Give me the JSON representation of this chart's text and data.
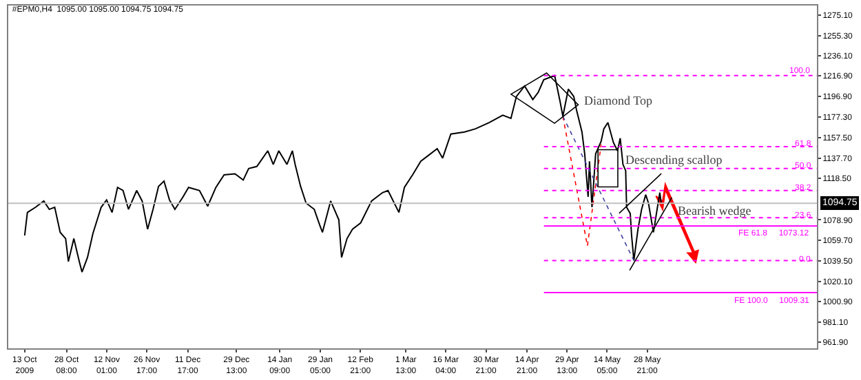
{
  "chart_data": {
    "type": "line",
    "title": "#EPM0,H4  1095.00 1095.00 1094.75 1094.75",
    "x": [
      "2009-10-13",
      "2009-10-14",
      "2009-10-17",
      "2009-10-20",
      "2009-10-22",
      "2009-10-24",
      "2009-10-26",
      "2009-10-28",
      "2009-10-29",
      "2009-10-31",
      "2009-11-02",
      "2009-11-03",
      "2009-11-05",
      "2009-11-07",
      "2009-11-10",
      "2009-11-12",
      "2009-11-14",
      "2009-11-16",
      "2009-11-18",
      "2009-11-20",
      "2009-11-23",
      "2009-11-25",
      "2009-11-27",
      "2009-11-29",
      "2009-12-01",
      "2009-12-03",
      "2009-12-05",
      "2009-12-07",
      "2009-12-10",
      "2009-12-12",
      "2009-12-16",
      "2009-12-19",
      "2009-12-22",
      "2009-12-25",
      "2009-12-29",
      "2010-01-01",
      "2010-01-03",
      "2010-01-06",
      "2010-01-10",
      "2010-01-12",
      "2010-01-14",
      "2010-01-17",
      "2010-01-19",
      "2010-01-20",
      "2010-01-22",
      "2010-01-24",
      "2010-01-27",
      "2010-01-29",
      "2010-01-30",
      "2010-02-02",
      "2010-02-05",
      "2010-02-06",
      "2010-02-08",
      "2010-02-10",
      "2010-02-13",
      "2010-02-17",
      "2010-02-21",
      "2010-02-23",
      "2010-02-27",
      "2010-03-01",
      "2010-03-04",
      "2010-03-07",
      "2010-03-10",
      "2010-03-13",
      "2010-03-15",
      "2010-03-18",
      "2010-03-23",
      "2010-03-27",
      "2010-04-01",
      "2010-04-06",
      "2010-04-09",
      "2010-04-11",
      "2010-04-14",
      "2010-04-17",
      "2010-04-19",
      "2010-04-21",
      "2010-04-25",
      "2010-04-27",
      "2010-04-28",
      "2010-04-30",
      "2010-05-02",
      "2010-05-03",
      "2010-05-05",
      "2010-05-06",
      "2010-05-07T06:00",
      "2010-05-07T18:00",
      "2010-05-08T16:00",
      "2010-05-10",
      "2010-05-12",
      "2010-05-13",
      "2010-05-14T12:00",
      "2010-05-16T12:00",
      "2010-05-18",
      "2010-05-19",
      "2010-05-20",
      "2010-05-21",
      "2010-05-21T08:00",
      "2010-05-22T16:00",
      "2010-05-23T04:00",
      "2010-05-24",
      "2010-05-25T12:00",
      "2010-05-26T20:00",
      "2010-05-28T08:00",
      "2010-05-29T08:00",
      "2010-05-31T04:00",
      "2010-06-01T12:00",
      "2010-06-02T12:00",
      "2010-06-03"
    ],
    "series": [
      {
        "color": "#000000",
        "values": [
          1064,
          1086,
          1091,
          1097,
          1089,
          1091,
          1067,
          1061,
          1039,
          1061,
          1039,
          1029,
          1043,
          1066,
          1091,
          1098,
          1086,
          1110,
          1107,
          1089,
          1107,
          1097,
          1070,
          1089,
          1111,
          1116,
          1098,
          1089,
          1101,
          1110,
          1107,
          1092,
          1110,
          1122,
          1123,
          1117,
          1128,
          1130,
          1145,
          1132,
          1145,
          1132,
          1145,
          1132,
          1111,
          1095,
          1089,
          1074,
          1067,
          1097,
          1079,
          1043,
          1061,
          1070,
          1076,
          1097,
          1105,
          1107,
          1086,
          1110,
          1122,
          1135,
          1141,
          1147,
          1138,
          1161,
          1163,
          1166,
          1172,
          1179,
          1176,
          1197,
          1207,
          1194,
          1201,
          1213,
          1217,
          1192,
          1178,
          1204,
          1197,
          1184,
          1163,
          1142,
          1101,
          1135,
          1091,
          1142,
          1154,
          1166,
          1172,
          1153,
          1145,
          1157,
          1132,
          1126,
          1091,
          1085,
          1064,
          1040,
          1070,
          1089,
          1103,
          1095,
          1067,
          1089,
          1105,
          1095
        ]
      },
      {
        "type": "line",
        "color": "#ff0000",
        "line_style": "dotted",
        "x": [
          "2010-04-28",
          "2010-05-07",
          "2010-05-12"
        ],
        "values": [
          1178,
          1054,
          1151
        ]
      },
      {
        "type": "line",
        "color": "#4040a0",
        "line_style": "dotted",
        "x": [
          "2010-04-28",
          "2010-05-24"
        ],
        "values": [
          1178,
          1040
        ]
      }
    ],
    "xlim": [
      "2009-10-07",
      "2010-07-30"
    ],
    "xticks": [
      {
        "value": "2009-10-13",
        "label": "13 Oct 2009"
      },
      {
        "value": "2009-10-28T08:00",
        "label": "28 Oct 08:00"
      },
      {
        "value": "2009-11-12T01:00",
        "label": "12 Nov 01:00"
      },
      {
        "value": "2009-11-26T17:00",
        "label": "26 Nov 17:00"
      },
      {
        "value": "2009-12-11T17:00",
        "label": "11 Dec 17:00"
      },
      {
        "value": "2009-12-29T13:00",
        "label": "29 Dec 13:00"
      },
      {
        "value": "2010-01-14T09:00",
        "label": "14 Jan 09:00"
      },
      {
        "value": "2010-01-29T05:00",
        "label": "29 Jan 05:00"
      },
      {
        "value": "2010-02-12T21:00",
        "label": "12 Feb 21:00"
      },
      {
        "value": "2010-03-01T13:00",
        "label": "1 Mar 13:00"
      },
      {
        "value": "2010-03-16T04:00",
        "label": "16 Mar 04:00"
      },
      {
        "value": "2010-03-30T21:00",
        "label": "30 Mar 21:00"
      },
      {
        "value": "2010-04-14T21:00",
        "label": "14 Apr 21:00"
      },
      {
        "value": "2010-04-29T13:00",
        "label": "29 Apr 13:00"
      },
      {
        "value": "2010-05-14T05:00",
        "label": "14 May 05:00"
      },
      {
        "value": "2010-05-28T21:00",
        "label": "28 May 21:00"
      }
    ],
    "ylim": [
      956,
      1284
    ],
    "yticks": [
      {
        "value": 961.9,
        "label": "961.90"
      },
      {
        "value": 981.1,
        "label": "981.10"
      },
      {
        "value": 1000.9,
        "label": "1000.90"
      },
      {
        "value": 1020.1,
        "label": "1020.10"
      },
      {
        "value": 1039.5,
        "label": "1039.50"
      },
      {
        "value": 1059.7,
        "label": "1059.70"
      },
      {
        "value": 1078.9,
        "label": "1078.90"
      },
      {
        "value": 1118.5,
        "label": "1118.50"
      },
      {
        "value": 1137.7,
        "label": "1137.70"
      },
      {
        "value": 1157.5,
        "label": "1157.50"
      },
      {
        "value": 1177.3,
        "label": "1177.30"
      },
      {
        "value": 1196.9,
        "label": "1196.90"
      },
      {
        "value": 1216.9,
        "label": "1216.90"
      },
      {
        "value": 1236.1,
        "label": "1236.10"
      },
      {
        "value": 1255.3,
        "label": "1255.30"
      },
      {
        "value": 1275.1,
        "label": "1275.10"
      }
    ],
    "ref_lines": [
      {
        "axis": "y",
        "value": 1094.75,
        "label": "1094.75",
        "color": "#c0c0c0",
        "line_style": "solid"
      },
      {
        "axis": "y",
        "value": 1217,
        "color": "#ff00ff",
        "line_style": "dotted"
      },
      {
        "axis": "y",
        "value": 1149,
        "color": "#ff00ff",
        "line_style": "dotted"
      },
      {
        "axis": "y",
        "value": 1128,
        "color": "#ff00ff",
        "line_style": "dotted"
      },
      {
        "axis": "y",
        "value": 1107,
        "color": "#ff00ff",
        "line_style": "dotted"
      },
      {
        "axis": "y",
        "value": 1081,
        "color": "#ff00ff",
        "line_style": "dotted"
      },
      {
        "axis": "y",
        "value": 1040,
        "color": "#ff00ff",
        "line_style": "dotted"
      },
      {
        "axis": "y",
        "value": 1073.12,
        "label": "FE 61.8     1073.12",
        "color": "#ff00ff",
        "line_style": "solid"
      },
      {
        "axis": "y",
        "value": 1009.31,
        "label": "FE 100.0     1009.31",
        "color": "#ff00ff",
        "line_style": "solid"
      }
    ],
    "annotations": [
      "Diamond Top",
      "Descending scallop",
      "Bearish wedge",
      "100.0",
      "61.8",
      "50.0",
      "38.2",
      "23.6",
      "0.0"
    ],
    "marker": "none",
    "line_style": "solid"
  }
}
